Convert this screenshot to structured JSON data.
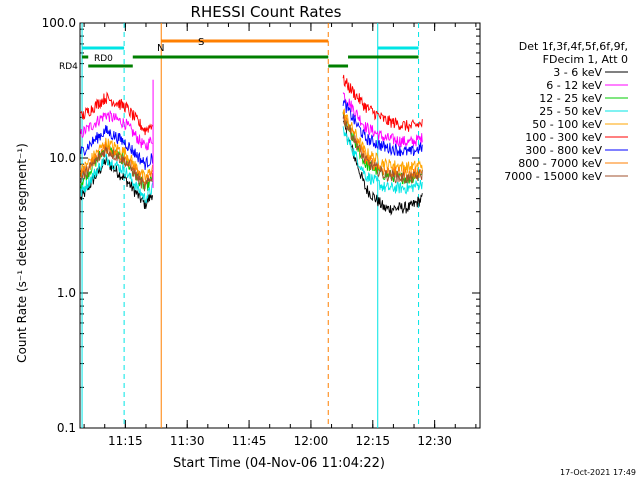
{
  "chart_data": {
    "type": "line",
    "title": "RHESSI Count Rates",
    "xlabel": "Start Time (04-Nov-06 11:04:22)",
    "ylabel": "Count Rate (s⁻¹ detector segment⁻¹)",
    "yscale": "log",
    "ylim": [
      0.1,
      100
    ],
    "xlim_minutes": [
      11.0667,
      12.6833
    ],
    "x_ticks": [
      "11:15",
      "11:30",
      "11:45",
      "12:00",
      "12:15",
      "12:30"
    ],
    "y_ticks": [
      "0.1",
      "1.0",
      "10.0",
      "100.0"
    ],
    "legend_header": [
      "Det 1f,3f,4f,5f,6f,9f,",
      "FDecim 1, Att 0"
    ],
    "legend_position": "right",
    "timestamp": "17-Oct-2021 17:49",
    "series": [
      {
        "name": "3 - 6 keV",
        "color": "#000000",
        "segment1": [
          [
            11.07,
            5.0
          ],
          [
            11.17,
            9.5
          ],
          [
            11.25,
            7.0
          ],
          [
            11.33,
            4.5
          ],
          [
            11.36,
            5.5
          ]
        ],
        "segment2": [
          [
            12.13,
            18
          ],
          [
            12.22,
            6.0
          ],
          [
            12.3,
            4.2
          ],
          [
            12.4,
            4.3
          ],
          [
            12.45,
            5.0
          ]
        ]
      },
      {
        "name": "6 - 12 keV",
        "color": "#ff00ff",
        "segment1": [
          [
            11.07,
            15
          ],
          [
            11.17,
            21
          ],
          [
            11.25,
            18
          ],
          [
            11.33,
            12
          ],
          [
            11.36,
            14
          ]
        ],
        "segment2": [
          [
            12.13,
            30
          ],
          [
            12.22,
            17
          ],
          [
            12.3,
            14
          ],
          [
            12.4,
            13
          ],
          [
            12.45,
            14
          ]
        ]
      },
      {
        "name": "12 - 25 keV",
        "color": "#00cc00",
        "segment1": [
          [
            11.07,
            6.5
          ],
          [
            11.17,
            12
          ],
          [
            11.25,
            9.5
          ],
          [
            11.33,
            6.0
          ],
          [
            11.36,
            7.0
          ]
        ],
        "segment2": [
          [
            12.13,
            20
          ],
          [
            12.22,
            9.0
          ],
          [
            12.3,
            7.5
          ],
          [
            12.4,
            7.0
          ],
          [
            12.45,
            8.0
          ]
        ]
      },
      {
        "name": "25 - 50 keV",
        "color": "#00e5e5",
        "segment1": [
          [
            11.07,
            5.5
          ],
          [
            11.17,
            10
          ],
          [
            11.25,
            8.0
          ],
          [
            11.33,
            5.0
          ],
          [
            11.36,
            6.0
          ]
        ],
        "segment2": [
          [
            12.13,
            16
          ],
          [
            12.22,
            7.5
          ],
          [
            12.3,
            6.0
          ],
          [
            12.4,
            6.0
          ],
          [
            12.45,
            6.5
          ]
        ]
      },
      {
        "name": "50 - 100 keV",
        "color": "#ffa500",
        "segment1": [
          [
            11.07,
            8.0
          ],
          [
            11.17,
            13
          ],
          [
            11.25,
            11
          ],
          [
            11.33,
            7.0
          ],
          [
            11.36,
            8.5
          ]
        ],
        "segment2": [
          [
            12.13,
            22
          ],
          [
            12.22,
            11
          ],
          [
            12.3,
            9.0
          ],
          [
            12.4,
            8.5
          ],
          [
            12.45,
            9.0
          ]
        ]
      },
      {
        "name": "100 - 300 keV",
        "color": "#ff0000",
        "segment1": [
          [
            11.07,
            20
          ],
          [
            11.17,
            28
          ],
          [
            11.25,
            24
          ],
          [
            11.33,
            16
          ],
          [
            11.36,
            18
          ]
        ],
        "segment2": [
          [
            12.13,
            38
          ],
          [
            12.22,
            24
          ],
          [
            12.3,
            19
          ],
          [
            12.4,
            17
          ],
          [
            12.45,
            18
          ]
        ]
      },
      {
        "name": "300 - 800 keV",
        "color": "#0000ff",
        "segment1": [
          [
            11.07,
            11
          ],
          [
            11.17,
            16
          ],
          [
            11.25,
            13
          ],
          [
            11.33,
            9.0
          ],
          [
            11.36,
            10
          ]
        ],
        "segment2": [
          [
            12.13,
            26
          ],
          [
            12.22,
            14
          ],
          [
            12.3,
            12
          ],
          [
            12.4,
            11
          ],
          [
            12.45,
            12
          ]
        ]
      },
      {
        "name": "800 - 7000 keV",
        "color": "#ff7f00",
        "segment1": [
          [
            11.07,
            7.5
          ],
          [
            11.17,
            12
          ],
          [
            11.25,
            10
          ],
          [
            11.33,
            6.5
          ],
          [
            11.36,
            8.0
          ]
        ],
        "segment2": [
          [
            12.13,
            21
          ],
          [
            12.22,
            10
          ],
          [
            12.3,
            8.0
          ],
          [
            12.4,
            7.5
          ],
          [
            12.45,
            8.0
          ]
        ]
      },
      {
        "name": "7000 - 15000 keV",
        "color": "#a0522d",
        "segment1": [
          [
            11.07,
            7.0
          ],
          [
            11.17,
            11.5
          ],
          [
            11.25,
            9.5
          ],
          [
            11.33,
            6.0
          ],
          [
            11.36,
            7.5
          ]
        ],
        "segment2": [
          [
            12.13,
            20
          ],
          [
            12.22,
            9.5
          ],
          [
            12.3,
            7.5
          ],
          [
            12.4,
            7.0
          ],
          [
            12.45,
            7.5
          ]
        ]
      }
    ],
    "annotations": {
      "flag_labels": {
        "rd0": "RD0",
        "rd4": "RD4",
        "n": "N",
        "s": "S"
      }
    }
  }
}
